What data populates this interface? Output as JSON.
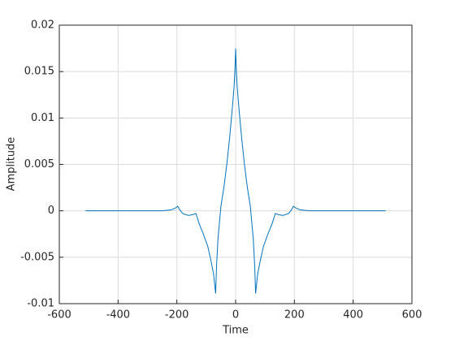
{
  "chart_data": {
    "type": "line",
    "xlabel": "Time",
    "ylabel": "Amplitude",
    "x": [
      -511,
      -300,
      -250,
      -220,
      -205,
      -197,
      -190,
      -180,
      -160,
      -145,
      -135,
      -130,
      -125,
      -110,
      -95,
      -85,
      -75,
      -68,
      -65,
      -60,
      -50,
      -40,
      -30,
      -20,
      -10,
      -5,
      -2,
      0,
      2,
      5,
      10,
      20,
      30,
      40,
      50,
      60,
      65,
      68,
      75,
      85,
      95,
      110,
      125,
      130,
      135,
      145,
      160,
      180,
      190,
      197,
      205,
      220,
      250,
      300,
      511
    ],
    "series": [
      {
        "color": "#0072bd",
        "values": [
          0,
          0,
          0,
          0.0001,
          0.0003,
          0.0005,
          0.0001,
          -0.0003,
          -0.0005,
          -0.0004,
          -0.0003,
          -0.0008,
          -0.0013,
          -0.0025,
          -0.0038,
          -0.0052,
          -0.0068,
          -0.0089,
          -0.006,
          -0.003,
          0.0005,
          0.0025,
          0.005,
          0.008,
          0.0115,
          0.0135,
          0.0155,
          0.0175,
          0.0155,
          0.0135,
          0.0115,
          0.008,
          0.005,
          0.0025,
          0.0005,
          -0.003,
          -0.006,
          -0.0089,
          -0.0068,
          -0.0052,
          -0.0038,
          -0.0025,
          -0.0013,
          -0.0008,
          -0.0003,
          -0.0004,
          -0.0005,
          -0.0003,
          0.0001,
          0.0005,
          0.0003,
          0.0001,
          0,
          0,
          0
        ]
      }
    ],
    "xlim": [
      -600,
      600
    ],
    "xticks": [
      -600,
      -400,
      -200,
      0,
      200,
      400,
      600
    ],
    "ylim": [
      -0.01,
      0.02
    ],
    "yticks": [
      -0.01,
      -0.005,
      0,
      0.005,
      0.01,
      0.015,
      0.02
    ],
    "grid": true
  }
}
